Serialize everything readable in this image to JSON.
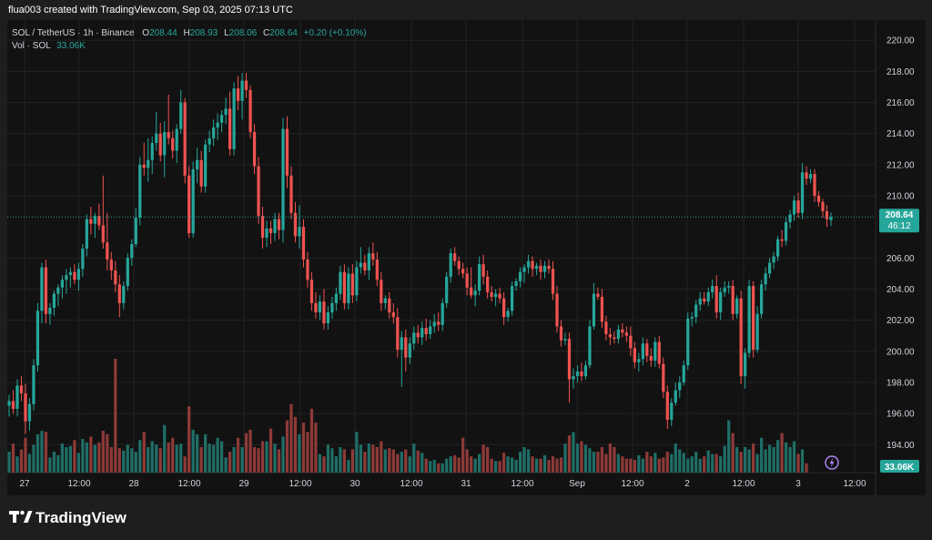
{
  "header": {
    "credit": "flua003 created with TradingView.com, Sep 03, 2025 07:13 UTC",
    "symbol": "SOL / TetherUS · 1h · Binance",
    "o_label": "O",
    "o_value": "208.44",
    "h_label": "H",
    "h_value": "208.93",
    "l_label": "L",
    "l_value": "208.06",
    "c_label": "C",
    "c_value": "208.64",
    "change": "+0.20 (+0.10%)",
    "vol_label": "Vol · SOL",
    "vol_value": "33.06K"
  },
  "price_badge": {
    "price": "208.64",
    "countdown": "46:12"
  },
  "vol_badge": "33.06K",
  "brand": {
    "name": "TradingView"
  },
  "colors": {
    "up": "#26a69a",
    "down": "#ef5350",
    "up_vol": "#1f6e67",
    "down_vol": "#8e3a38",
    "background": "#121212",
    "grid": "#222222",
    "text": "#d1d4dc",
    "lightning": "#b388ff"
  },
  "chart_data": {
    "type": "candlestick",
    "y_ticks": [
      "220.00",
      "218.00",
      "216.00",
      "214.00",
      "212.00",
      "210.00",
      "206.00",
      "204.00",
      "202.00",
      "200.00",
      "198.00",
      "196.00",
      "194.00"
    ],
    "x_ticks": [
      "27",
      "12:00",
      "28",
      "12:00",
      "29",
      "12:00",
      "30",
      "12:00",
      "31",
      "12:00",
      "Sep",
      "12:00",
      "2",
      "12:00",
      "3",
      "12:00"
    ],
    "ylim": [
      192.2,
      221.3
    ],
    "last_price": 208.64,
    "ohlc": [
      [
        196.5,
        197.2,
        195.8,
        196.8
      ],
      [
        196.8,
        197.5,
        196.0,
        196.3
      ],
      [
        196.3,
        198.2,
        195.8,
        197.8
      ],
      [
        197.8,
        198.4,
        196.8,
        197.3
      ],
      [
        197.3,
        197.9,
        194.7,
        195.5
      ],
      [
        195.5,
        197.0,
        194.9,
        196.6
      ],
      [
        196.6,
        199.5,
        196.2,
        199.1
      ],
      [
        199.1,
        203.1,
        198.7,
        202.6
      ],
      [
        202.6,
        205.7,
        201.8,
        205.4
      ],
      [
        205.4,
        205.9,
        201.8,
        202.4
      ],
      [
        202.4,
        203.1,
        201.7,
        202.8
      ],
      [
        202.8,
        203.9,
        202.3,
        203.7
      ],
      [
        203.7,
        204.3,
        202.9,
        204.1
      ],
      [
        204.1,
        204.9,
        203.4,
        204.6
      ],
      [
        204.6,
        205.3,
        203.7,
        204.9
      ],
      [
        204.9,
        205.4,
        204.1,
        205.1
      ],
      [
        205.1,
        205.6,
        204.3,
        204.6
      ],
      [
        204.6,
        205.7,
        203.9,
        205.3
      ],
      [
        205.3,
        206.9,
        204.8,
        206.6
      ],
      [
        206.6,
        208.8,
        206.1,
        208.5
      ],
      [
        208.5,
        209.3,
        207.5,
        208.2
      ],
      [
        208.2,
        208.9,
        207.3,
        208.7
      ],
      [
        208.7,
        209.5,
        207.8,
        208.1
      ],
      [
        208.1,
        211.3,
        206.6,
        207.0
      ],
      [
        207.0,
        208.9,
        205.2,
        205.9
      ],
      [
        205.9,
        206.4,
        204.6,
        205.2
      ],
      [
        205.2,
        205.8,
        203.8,
        204.3
      ],
      [
        204.3,
        204.9,
        202.2,
        203.1
      ],
      [
        203.1,
        204.5,
        202.7,
        204.2
      ],
      [
        204.2,
        206.3,
        203.9,
        206.0
      ],
      [
        206.0,
        207.2,
        205.5,
        206.9
      ],
      [
        206.9,
        209.2,
        206.7,
        208.6
      ],
      [
        208.6,
        212.5,
        208.1,
        212.0
      ],
      [
        212.0,
        213.4,
        211.3,
        211.8
      ],
      [
        211.8,
        213.7,
        210.9,
        212.3
      ],
      [
        212.3,
        213.8,
        211.4,
        213.4
      ],
      [
        213.4,
        215.4,
        212.9,
        214.0
      ],
      [
        214.0,
        214.7,
        212.2,
        212.6
      ],
      [
        212.6,
        214.8,
        211.2,
        214.1
      ],
      [
        214.1,
        216.5,
        213.3,
        213.7
      ],
      [
        213.7,
        214.2,
        212.4,
        212.9
      ],
      [
        212.9,
        214.6,
        212.1,
        214.3
      ],
      [
        214.3,
        216.8,
        214.0,
        216.0
      ],
      [
        216.0,
        216.3,
        210.8,
        211.3
      ],
      [
        211.3,
        211.9,
        207.3,
        207.6
      ],
      [
        207.6,
        212.2,
        207.3,
        211.7
      ],
      [
        211.7,
        213.1,
        210.8,
        212.3
      ],
      [
        212.3,
        212.9,
        210.2,
        210.6
      ],
      [
        210.6,
        213.6,
        210.2,
        213.3
      ],
      [
        213.3,
        214.2,
        212.8,
        213.7
      ],
      [
        213.7,
        214.9,
        213.2,
        214.4
      ],
      [
        214.4,
        215.3,
        213.6,
        214.7
      ],
      [
        214.7,
        215.5,
        214.1,
        215.2
      ],
      [
        215.2,
        216.3,
        214.6,
        215.6
      ],
      [
        215.6,
        216.7,
        212.6,
        213.0
      ],
      [
        213.0,
        217.3,
        212.6,
        216.9
      ],
      [
        216.9,
        217.7,
        215.5,
        216.1
      ],
      [
        216.1,
        217.9,
        214.9,
        217.4
      ],
      [
        217.4,
        217.9,
        216.3,
        216.8
      ],
      [
        216.8,
        217.1,
        213.7,
        214.1
      ],
      [
        214.1,
        214.6,
        211.4,
        211.9
      ],
      [
        211.9,
        212.5,
        208.2,
        208.7
      ],
      [
        208.7,
        209.3,
        206.6,
        207.3
      ],
      [
        207.3,
        208.4,
        206.7,
        207.9
      ],
      [
        207.9,
        208.4,
        206.9,
        207.6
      ],
      [
        207.6,
        208.9,
        207.1,
        208.5
      ],
      [
        208.5,
        208.9,
        207.2,
        207.8
      ],
      [
        207.8,
        215.0,
        207.0,
        214.3
      ],
      [
        214.3,
        215.1,
        210.5,
        211.3
      ],
      [
        211.3,
        211.9,
        208.5,
        208.9
      ],
      [
        208.9,
        209.6,
        207.0,
        207.4
      ],
      [
        207.4,
        209.4,
        206.6,
        208.0
      ],
      [
        208.0,
        208.5,
        205.4,
        205.9
      ],
      [
        205.9,
        206.4,
        204.1,
        204.6
      ],
      [
        204.6,
        205.1,
        202.6,
        203.1
      ],
      [
        203.1,
        203.8,
        202.1,
        202.5
      ],
      [
        202.5,
        203.6,
        202.0,
        203.2
      ],
      [
        203.2,
        204.0,
        201.4,
        201.8
      ],
      [
        201.8,
        202.9,
        201.4,
        202.5
      ],
      [
        202.5,
        203.5,
        202.1,
        203.1
      ],
      [
        203.1,
        204.1,
        202.6,
        203.7
      ],
      [
        203.7,
        205.5,
        203.3,
        205.1
      ],
      [
        205.1,
        205.6,
        202.7,
        203.1
      ],
      [
        203.1,
        205.4,
        202.7,
        205.0
      ],
      [
        205.0,
        205.6,
        203.1,
        203.6
      ],
      [
        203.6,
        205.8,
        203.2,
        205.4
      ],
      [
        205.4,
        206.7,
        205.0,
        205.7
      ],
      [
        205.7,
        206.2,
        204.9,
        205.2
      ],
      [
        205.2,
        206.7,
        204.6,
        206.3
      ],
      [
        206.3,
        207.0,
        205.5,
        205.9
      ],
      [
        205.9,
        206.4,
        204.2,
        204.6
      ],
      [
        204.6,
        205.1,
        202.6,
        203.1
      ],
      [
        203.1,
        203.6,
        202.7,
        203.4
      ],
      [
        203.4,
        203.8,
        202.1,
        202.5
      ],
      [
        202.5,
        203.1,
        201.8,
        202.2
      ],
      [
        202.2,
        202.8,
        199.6,
        200.1
      ],
      [
        200.1,
        201.3,
        197.7,
        200.9
      ],
      [
        200.9,
        201.4,
        198.7,
        199.6
      ],
      [
        199.6,
        200.9,
        199.2,
        200.5
      ],
      [
        200.5,
        201.6,
        200.1,
        201.2
      ],
      [
        201.2,
        201.7,
        200.5,
        200.9
      ],
      [
        200.9,
        201.9,
        200.4,
        201.5
      ],
      [
        201.5,
        202.1,
        200.7,
        201.1
      ],
      [
        201.1,
        202.0,
        200.8,
        201.6
      ],
      [
        201.6,
        202.4,
        201.2,
        201.9
      ],
      [
        201.9,
        202.5,
        201.3,
        201.7
      ],
      [
        201.7,
        203.4,
        201.3,
        203.1
      ],
      [
        203.1,
        205.1,
        202.8,
        204.8
      ],
      [
        204.8,
        206.6,
        204.4,
        206.3
      ],
      [
        206.3,
        206.7,
        205.5,
        205.8
      ],
      [
        205.8,
        206.1,
        204.9,
        205.3
      ],
      [
        205.3,
        205.7,
        204.7,
        205.0
      ],
      [
        205.0,
        205.4,
        203.6,
        204.1
      ],
      [
        204.1,
        205.4,
        203.4,
        203.6
      ],
      [
        203.6,
        204.3,
        202.9,
        203.9
      ],
      [
        203.9,
        206.1,
        203.6,
        205.6
      ],
      [
        205.6,
        206.2,
        204.3,
        204.8
      ],
      [
        204.8,
        205.2,
        203.4,
        203.8
      ],
      [
        203.8,
        204.2,
        203.2,
        203.5
      ],
      [
        203.5,
        204.0,
        202.9,
        203.7
      ],
      [
        203.7,
        204.1,
        203.1,
        203.4
      ],
      [
        203.4,
        203.8,
        201.7,
        202.2
      ],
      [
        202.2,
        202.8,
        201.9,
        202.6
      ],
      [
        202.6,
        204.5,
        202.3,
        204.2
      ],
      [
        204.2,
        204.7,
        203.9,
        204.5
      ],
      [
        204.5,
        205.4,
        204.1,
        205.1
      ],
      [
        205.1,
        205.6,
        204.4,
        205.4
      ],
      [
        205.4,
        206.2,
        205.0,
        205.8
      ],
      [
        205.8,
        206.1,
        204.8,
        205.3
      ],
      [
        205.3,
        205.7,
        204.9,
        205.5
      ],
      [
        205.5,
        205.9,
        204.6,
        205.1
      ],
      [
        205.1,
        205.8,
        204.7,
        205.5
      ],
      [
        205.5,
        205.9,
        205.0,
        205.3
      ],
      [
        205.3,
        205.8,
        203.3,
        203.7
      ],
      [
        203.7,
        204.2,
        201.2,
        201.6
      ],
      [
        201.6,
        202.0,
        200.3,
        200.7
      ],
      [
        200.7,
        201.2,
        200.4,
        200.8
      ],
      [
        200.8,
        201.2,
        196.7,
        198.2
      ],
      [
        198.2,
        198.9,
        197.6,
        198.4
      ],
      [
        198.4,
        199.1,
        198.0,
        198.7
      ],
      [
        198.7,
        199.3,
        198.1,
        198.4
      ],
      [
        198.4,
        199.4,
        198.2,
        199.1
      ],
      [
        199.1,
        202.0,
        198.9,
        201.6
      ],
      [
        201.6,
        204.4,
        201.4,
        203.7
      ],
      [
        203.7,
        204.1,
        203.3,
        203.5
      ],
      [
        203.5,
        204.0,
        201.5,
        201.9
      ],
      [
        201.9,
        202.3,
        200.7,
        201.1
      ],
      [
        201.1,
        201.5,
        200.4,
        200.9
      ],
      [
        200.9,
        201.3,
        200.5,
        200.8
      ],
      [
        200.8,
        201.7,
        200.5,
        201.4
      ],
      [
        201.4,
        201.8,
        200.9,
        201.2
      ],
      [
        201.2,
        201.6,
        200.6,
        201.0
      ],
      [
        201.0,
        201.6,
        199.7,
        200.2
      ],
      [
        200.2,
        200.6,
        198.9,
        199.3
      ],
      [
        199.3,
        199.9,
        198.7,
        199.5
      ],
      [
        199.5,
        200.9,
        199.1,
        200.5
      ],
      [
        200.5,
        200.8,
        199.3,
        199.7
      ],
      [
        199.7,
        200.2,
        199.0,
        199.4
      ],
      [
        199.4,
        200.9,
        199.0,
        200.6
      ],
      [
        200.6,
        201.0,
        198.9,
        199.2
      ],
      [
        199.2,
        199.6,
        197.0,
        197.4
      ],
      [
        197.4,
        197.8,
        195.0,
        195.6
      ],
      [
        195.6,
        197.0,
        195.2,
        196.7
      ],
      [
        196.7,
        198.0,
        196.5,
        197.5
      ],
      [
        197.5,
        198.4,
        197.0,
        198.0
      ],
      [
        198.0,
        199.4,
        197.8,
        199.1
      ],
      [
        199.1,
        202.5,
        198.8,
        202.1
      ],
      [
        202.1,
        202.5,
        201.6,
        202.2
      ],
      [
        202.2,
        203.3,
        201.8,
        203.0
      ],
      [
        203.0,
        203.8,
        202.6,
        203.4
      ],
      [
        203.4,
        203.8,
        203.0,
        203.2
      ],
      [
        203.2,
        204.1,
        202.9,
        203.8
      ],
      [
        203.8,
        204.6,
        203.4,
        204.2
      ],
      [
        204.2,
        204.9,
        202.1,
        202.5
      ],
      [
        202.5,
        204.1,
        202.0,
        203.8
      ],
      [
        203.8,
        204.5,
        203.5,
        204.1
      ],
      [
        204.1,
        204.5,
        203.7,
        204.2
      ],
      [
        204.2,
        204.6,
        202.0,
        202.4
      ],
      [
        202.4,
        203.6,
        202.1,
        203.4
      ],
      [
        203.4,
        203.9,
        197.9,
        198.4
      ],
      [
        198.4,
        200.2,
        197.6,
        199.9
      ],
      [
        199.9,
        204.6,
        199.6,
        204.2
      ],
      [
        204.2,
        204.5,
        199.6,
        200.1
      ],
      [
        200.1,
        202.9,
        199.9,
        202.4
      ],
      [
        202.4,
        204.6,
        202.1,
        204.3
      ],
      [
        204.3,
        205.4,
        203.9,
        205.0
      ],
      [
        205.0,
        206.0,
        204.7,
        205.7
      ],
      [
        205.7,
        206.4,
        205.3,
        206.1
      ],
      [
        206.1,
        207.4,
        205.8,
        207.2
      ],
      [
        207.2,
        207.8,
        206.7,
        207.1
      ],
      [
        207.1,
        208.6,
        206.8,
        208.3
      ],
      [
        208.3,
        209.1,
        207.9,
        208.8
      ],
      [
        208.8,
        210.0,
        208.4,
        209.7
      ],
      [
        209.7,
        210.2,
        208.6,
        208.9
      ],
      [
        208.9,
        212.1,
        208.5,
        211.5
      ],
      [
        211.5,
        211.9,
        210.7,
        211.1
      ],
      [
        211.1,
        211.7,
        210.8,
        211.4
      ],
      [
        211.4,
        211.7,
        209.6,
        210.0
      ],
      [
        210.0,
        210.3,
        209.3,
        209.6
      ],
      [
        209.6,
        209.8,
        208.6,
        209.0
      ],
      [
        209.0,
        209.4,
        208.0,
        208.5
      ],
      [
        208.44,
        208.93,
        208.06,
        208.64
      ]
    ],
    "volume": [
      18,
      25,
      14,
      20,
      30,
      16,
      24,
      33,
      36,
      35,
      13,
      18,
      15,
      25,
      22,
      23,
      28,
      17,
      29,
      26,
      31,
      24,
      26,
      36,
      33,
      22,
      98,
      21,
      19,
      24,
      21,
      18,
      28,
      35,
      22,
      27,
      24,
      21,
      41,
      26,
      30,
      24,
      25,
      14,
      57,
      37,
      33,
      22,
      33,
      25,
      24,
      30,
      27,
      13,
      18,
      22,
      30,
      22,
      34,
      37,
      22,
      21,
      27,
      27,
      38,
      25,
      20,
      31,
      45,
      59,
      48,
      33,
      43,
      35,
      55,
      43,
      16,
      14,
      24,
      21,
      14,
      22,
      20,
      11,
      20,
      35,
      24,
      18,
      25,
      24,
      22,
      27,
      20,
      21,
      20,
      16,
      18,
      20,
      14,
      25,
      19,
      17,
      12,
      10,
      11,
      8,
      8,
      12,
      14,
      15,
      13,
      30,
      20,
      14,
      12,
      16,
      24,
      22,
      12,
      10,
      10,
      17,
      14,
      13,
      11,
      18,
      22,
      20,
      14,
      12,
      12,
      15,
      11,
      14,
      12,
      13,
      25,
      32,
      35,
      25,
      27,
      24,
      21,
      18,
      18,
      22,
      16,
      25,
      22,
      16,
      14,
      12,
      12,
      11,
      15,
      12,
      18,
      14,
      17,
      12,
      13,
      18,
      16,
      25,
      20,
      17,
      12,
      14,
      18,
      12,
      14,
      19,
      16,
      16,
      14,
      23,
      45,
      34,
      22,
      18,
      22,
      20,
      25,
      16,
      30,
      20,
      24,
      22,
      28,
      34,
      26,
      22,
      27,
      16,
      20,
      8
    ]
  }
}
